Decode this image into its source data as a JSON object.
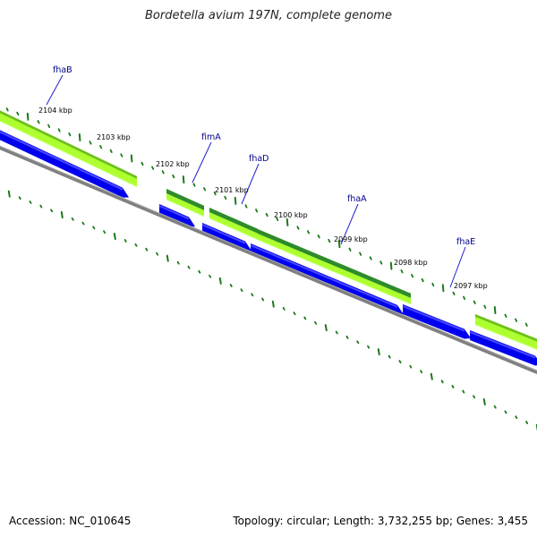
{
  "title": "Bordetella avium 197N, complete genome",
  "footer": {
    "accession": "Accession: NC_010645",
    "summary": "Topology: circular; Length: 3,732,255 bp; Genes: 3,455"
  },
  "position_labels": [
    "2104 kbp",
    "2103 kbp",
    "2102 kbp",
    "2101 kbp",
    "2100 kbp",
    "2099 kbp",
    "2098 kbp",
    "2097 kbp"
  ],
  "gene_labels": [
    "fhaB",
    "fimA",
    "fhaD",
    "fhaA",
    "fhaE"
  ],
  "colors": {
    "cds": "#0000ee",
    "feature_light": "#adff2f",
    "feature_dark": "#2e8b2e",
    "ticks": "#1a7a1a",
    "backbone": "#808080",
    "gene_label": "#00008b"
  }
}
